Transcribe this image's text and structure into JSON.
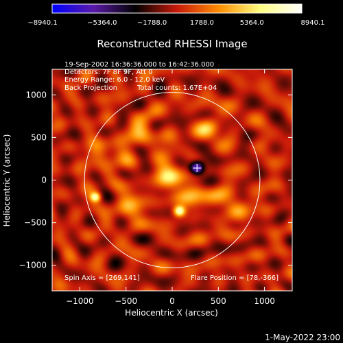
{
  "chart_data": {
    "type": "heatmap",
    "title": "Reconstructed RHESSI Image",
    "xlabel": "Heliocentric X (arcsec)",
    "ylabel": "Heliocentric Y (arcsec)",
    "xlim": [
      -1300,
      1300
    ],
    "ylim": [
      -1300,
      1300
    ],
    "xticks": [
      -1000,
      -500,
      0,
      500,
      1000
    ],
    "yticks": [
      -1000,
      -500,
      0,
      500,
      1000
    ],
    "colorbar": {
      "range": [
        -8940.1,
        8940.1
      ],
      "tick_labels": [
        "−8940.1",
        "−5364.0",
        "−1788.0",
        "1788.0",
        "5364.0",
        "8940.1"
      ],
      "colors": [
        "#0000ff",
        "#5a1aa8",
        "#000000",
        "#c81a0a",
        "#ff8c00",
        "#ffff80",
        "#ffffff"
      ]
    },
    "annotations": [
      "19-Sep-2002 16:36:36.000 to 16:42:36.000",
      "Detectors: 7F 8F 9F, Att 0",
      "Energy Range: 6.0 - 12.0 keV",
      "Back Projection",
      "Total counts: 1.67E+04"
    ],
    "footer_left": "Spin Axis = [269,141]",
    "footer_right": "Flare Position = [78,-366]",
    "solar_limb_radius_arcsec": 950,
    "marker": {
      "x": 269,
      "y": 141,
      "symbol": "+"
    },
    "features": [
      {
        "x": 269,
        "y": 141,
        "value": -8900,
        "sigma": 55
      },
      {
        "x": 78,
        "y": -366,
        "value": 8940,
        "sigma": 45
      },
      {
        "x": -830,
        "y": -200,
        "value": 7000,
        "sigma": 40
      },
      {
        "x": 0,
        "y": 60,
        "value": 4500,
        "sigma": 120
      },
      {
        "x": 420,
        "y": 640,
        "value": 4000,
        "sigma": 90
      },
      {
        "x": -300,
        "y": 550,
        "value": 3500,
        "sigma": 110
      },
      {
        "x": 250,
        "y": -150,
        "value": 3500,
        "sigma": 100
      },
      {
        "x": -450,
        "y": -320,
        "value": 3000,
        "sigma": 120
      },
      {
        "x": 650,
        "y": -300,
        "value": 3000,
        "sigma": 120
      },
      {
        "x": -700,
        "y": 300,
        "value": 2500,
        "sigma": 130
      }
    ]
  },
  "footer": {
    "timestamp": "1-May-2022 23:00"
  }
}
